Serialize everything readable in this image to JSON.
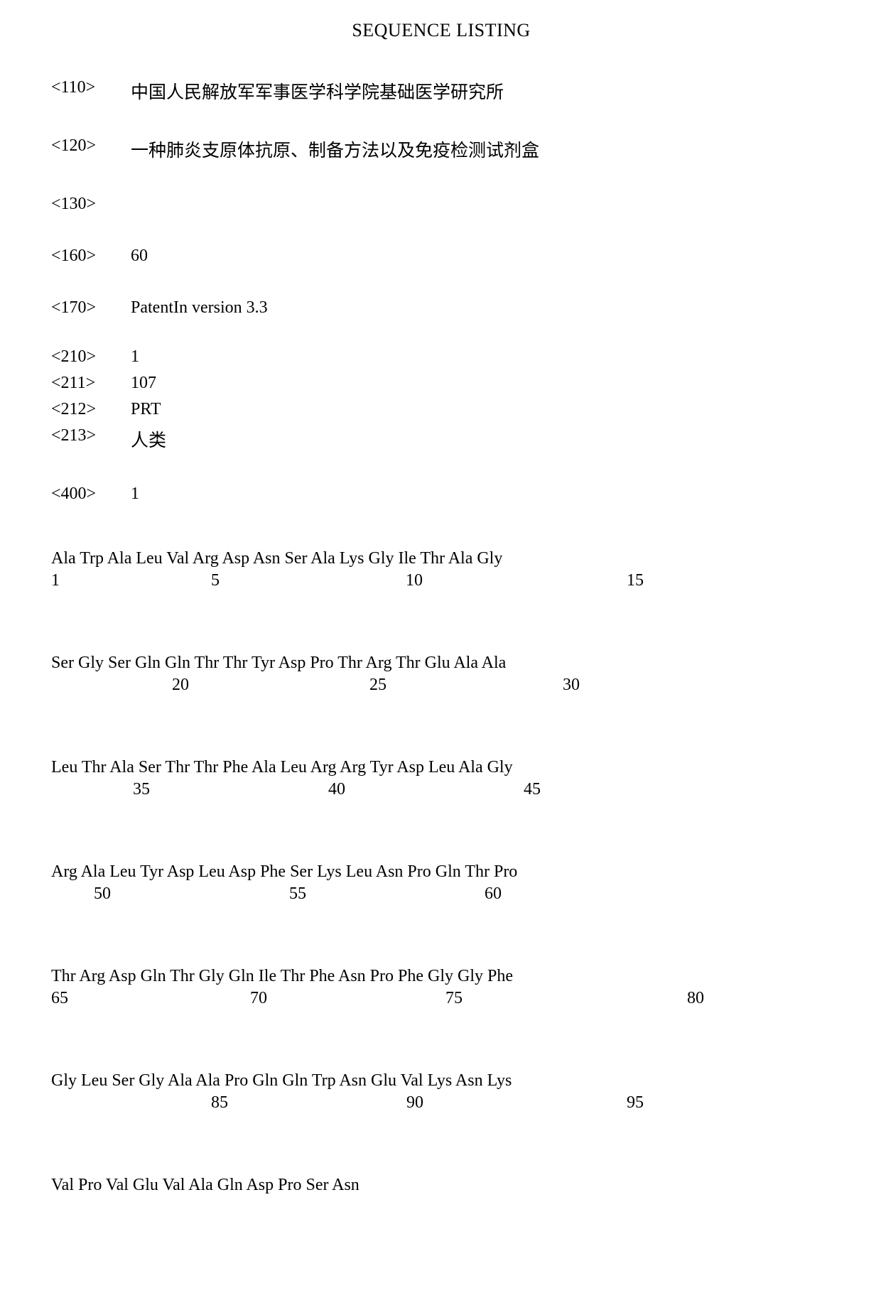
{
  "title": "SEQUENCE LISTING",
  "headers": {
    "tag110": "<110>",
    "val110": "中国人民解放军军事医学科学院基础医学研究所",
    "tag120": "<120>",
    "val120": "一种肺炎支原体抗原、制备方法以及免疫检测试剂盒",
    "tag130": "<130>",
    "val130": "",
    "tag160": "<160>",
    "val160": "60",
    "tag170": "<170>",
    "val170": "PatentIn version 3.3",
    "tag210": "<210>",
    "val210": "1",
    "tag211": "<211>",
    "val211": "107",
    "tag212": "<212>",
    "val212": "PRT",
    "tag213": "<213>",
    "val213": "人类",
    "tag400": "<400>",
    "val400": "1"
  },
  "seq": {
    "line1": {
      "residues": [
        "Ala",
        "Trp",
        "Ala",
        "Leu",
        "Val",
        "Arg",
        "Asp",
        "Asn",
        "Ser",
        "Ala",
        "Lys",
        "Gly",
        "Ile",
        "Thr",
        "Ala",
        "Gly"
      ],
      "nums": {
        "n1": "1",
        "n5": "5",
        "n10": "10",
        "n15": "15"
      }
    },
    "line2": {
      "residues": [
        "Ser",
        "Gly",
        "Ser",
        "Gln",
        "Gln",
        "Thr",
        "Thr",
        "Tyr",
        "Asp",
        "Pro",
        "Thr",
        "Arg",
        "Thr",
        "Glu",
        "Ala",
        "Ala"
      ],
      "nums": {
        "n20": "20",
        "n25": "25",
        "n30": "30"
      }
    },
    "line3": {
      "residues": [
        "Leu",
        "Thr",
        "Ala",
        "Ser",
        "Thr",
        "Thr",
        "Phe",
        "Ala",
        "Leu",
        "Arg",
        "Arg",
        "Tyr",
        "Asp",
        "Leu",
        "Ala",
        "Gly"
      ],
      "nums": {
        "n35": "35",
        "n40": "40",
        "n45": "45"
      }
    },
    "line4": {
      "residues": [
        "Arg",
        "Ala",
        "Leu",
        "Tyr",
        "Asp",
        "Leu",
        "Asp",
        "Phe",
        "Ser",
        "Lys",
        "Leu",
        "Asn",
        "Pro",
        "Gln",
        "Thr",
        "Pro"
      ],
      "nums": {
        "n50": "50",
        "n55": "55",
        "n60": "60"
      }
    },
    "line5": {
      "residues": [
        "Thr",
        "Arg",
        "Asp",
        "Gln",
        "Thr",
        "Gly",
        "Gln",
        "Ile",
        "Thr",
        "Phe",
        "Asn",
        "Pro",
        "Phe",
        "Gly",
        "Gly",
        "Phe"
      ],
      "nums": {
        "n65": "65",
        "n70": "70",
        "n75": "75",
        "n80": "80"
      }
    },
    "line6": {
      "residues": [
        "Gly",
        "Leu",
        "Ser",
        "Gly",
        "Ala",
        "Ala",
        "Pro",
        "Gln",
        "Gln",
        "Trp",
        "Asn",
        "Glu",
        "Val",
        "Lys",
        "Asn",
        "Lys"
      ],
      "nums": {
        "n85": "85",
        "n90": "90",
        "n95": "95"
      }
    },
    "line7": {
      "text": "Val Pro Val Glu Val Ala Gln Asp Pro Ser Asn"
    }
  },
  "layout": {
    "num_positions": {
      "line1": {
        "n1": 0,
        "n5": 225,
        "n10": 499,
        "n15": 810
      },
      "line2": {
        "n20": 170,
        "n25": 448,
        "n30": 720
      },
      "line3": {
        "n35": 115,
        "n40": 390,
        "n45": 665
      },
      "line4": {
        "n50": 60,
        "n55": 335,
        "n60": 610
      },
      "line5": {
        "n65": 0,
        "n70": 280,
        "n75": 555,
        "n80": 895
      },
      "line6": {
        "n85": 225,
        "n90": 500,
        "n95": 810
      }
    }
  },
  "colors": {
    "text": "#000000",
    "background": "#ffffff"
  },
  "typography": {
    "font_family": "Times New Roman",
    "body_fontsize": 24,
    "title_fontsize": 26
  }
}
